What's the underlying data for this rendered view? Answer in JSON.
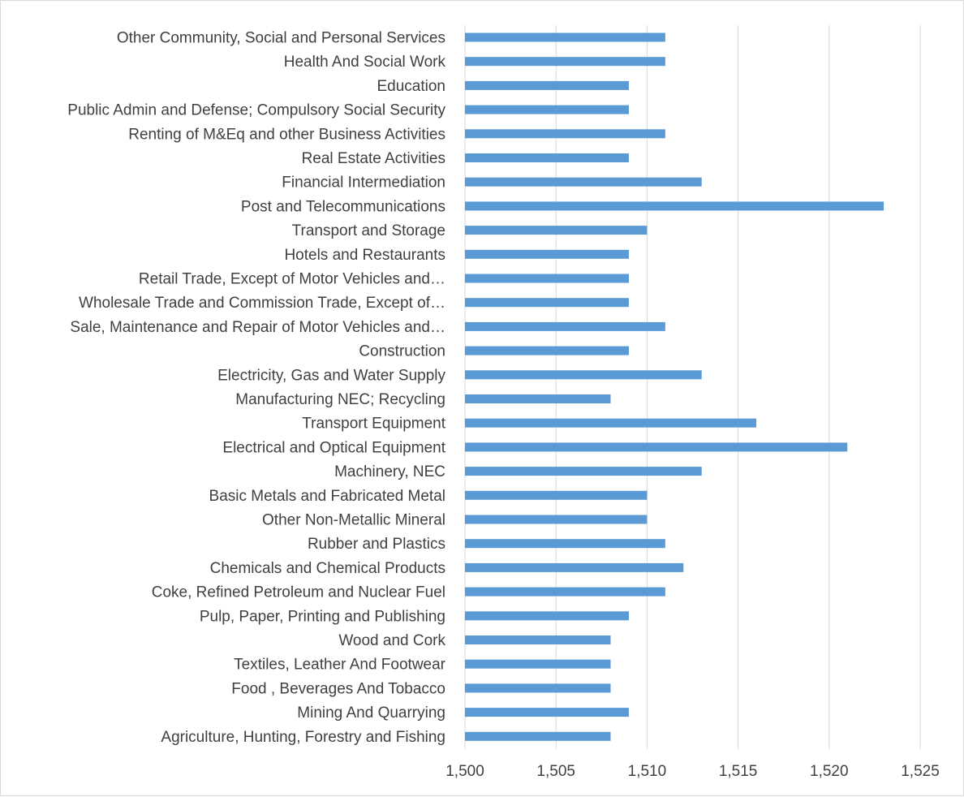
{
  "chart_data": {
    "type": "bar",
    "orientation": "horizontal",
    "title": "",
    "xlabel": "",
    "ylabel": "",
    "xlim": [
      1500,
      1525
    ],
    "xticks": [
      1500,
      1505,
      1510,
      1515,
      1520,
      1525
    ],
    "xtick_labels": [
      "1,500",
      "1,505",
      "1,510",
      "1,515",
      "1,520",
      "1,525"
    ],
    "grid": "vertical",
    "legend": "none",
    "bar_color": "#5b9bd5",
    "gridline_color": "#d9d9d9",
    "categories": [
      "Other Community, Social and Personal Services",
      "Health And Social Work",
      "Education",
      "Public Admin and Defense; Compulsory Social Security",
      "Renting of M&Eq and other Business Activities",
      "Real Estate Activities",
      "Financial Intermediation",
      "Post and Telecommunications",
      "Transport and Storage",
      "Hotels and Restaurants",
      "Retail Trade, Except of Motor Vehicles and…",
      "Wholesale Trade and Commission Trade, Except of…",
      "Sale, Maintenance and Repair of Motor Vehicles and…",
      "Construction",
      "Electricity, Gas and Water Supply",
      "Manufacturing NEC; Recycling",
      "Transport Equipment",
      "Electrical and Optical Equipment",
      "Machinery, NEC",
      "Basic Metals and Fabricated Metal",
      "Other Non-Metallic Mineral",
      "Rubber and Plastics",
      "Chemicals and Chemical Products",
      "Coke, Refined Petroleum and Nuclear Fuel",
      "Pulp, Paper, Printing and Publishing",
      "Wood and Cork",
      "Textiles, Leather And Footwear",
      "Food , Beverages And Tobacco",
      "Mining And Quarrying",
      "Agriculture, Hunting, Forestry and Fishing"
    ],
    "values": [
      1511,
      1511,
      1509,
      1509,
      1511,
      1509,
      1513,
      1523,
      1510,
      1509,
      1509,
      1509,
      1511,
      1509,
      1513,
      1508,
      1516,
      1521,
      1513,
      1510,
      1510,
      1511,
      1512,
      1511,
      1509,
      1508,
      1508,
      1508,
      1509,
      1508
    ]
  }
}
